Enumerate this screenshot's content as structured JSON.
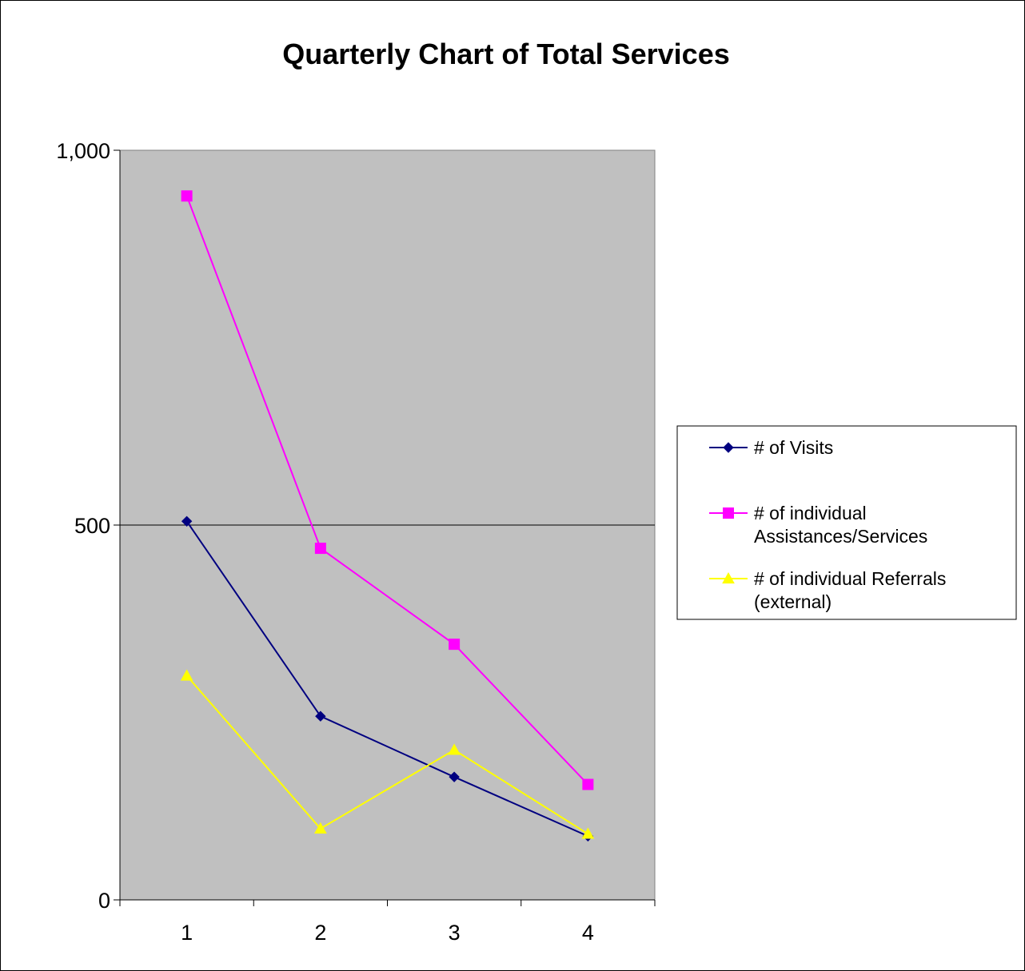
{
  "chart_data": {
    "type": "line",
    "title": "Quarterly Chart of Total Services",
    "xlabel": "",
    "ylabel": "",
    "categories": [
      "1",
      "2",
      "3",
      "4"
    ],
    "ylim": [
      0,
      1000
    ],
    "yticks": [
      0,
      500,
      1000
    ],
    "ytick_labels": [
      "0",
      "500",
      "1,000"
    ],
    "grid": "horizontal major gridlines",
    "plot_background": "#c0c0c0",
    "legend_position": "right",
    "series": [
      {
        "name": "# of Visits",
        "legend_lines": [
          "# of Visits"
        ],
        "values": [
          505,
          245,
          164,
          85
        ],
        "color": "#000080",
        "marker": "diamond"
      },
      {
        "name": "# of individual Assistances/Services",
        "legend_lines": [
          "# of individual",
          "Assistances/Services"
        ],
        "values": [
          939,
          469,
          341,
          154
        ],
        "color": "#ff00ff",
        "marker": "square"
      },
      {
        "name": "# of individual Referrals (external)",
        "legend_lines": [
          "# of individual Referrals",
          "(external)"
        ],
        "values": [
          299,
          95,
          200,
          88
        ],
        "color": "#ffff00",
        "marker": "triangle"
      }
    ]
  }
}
